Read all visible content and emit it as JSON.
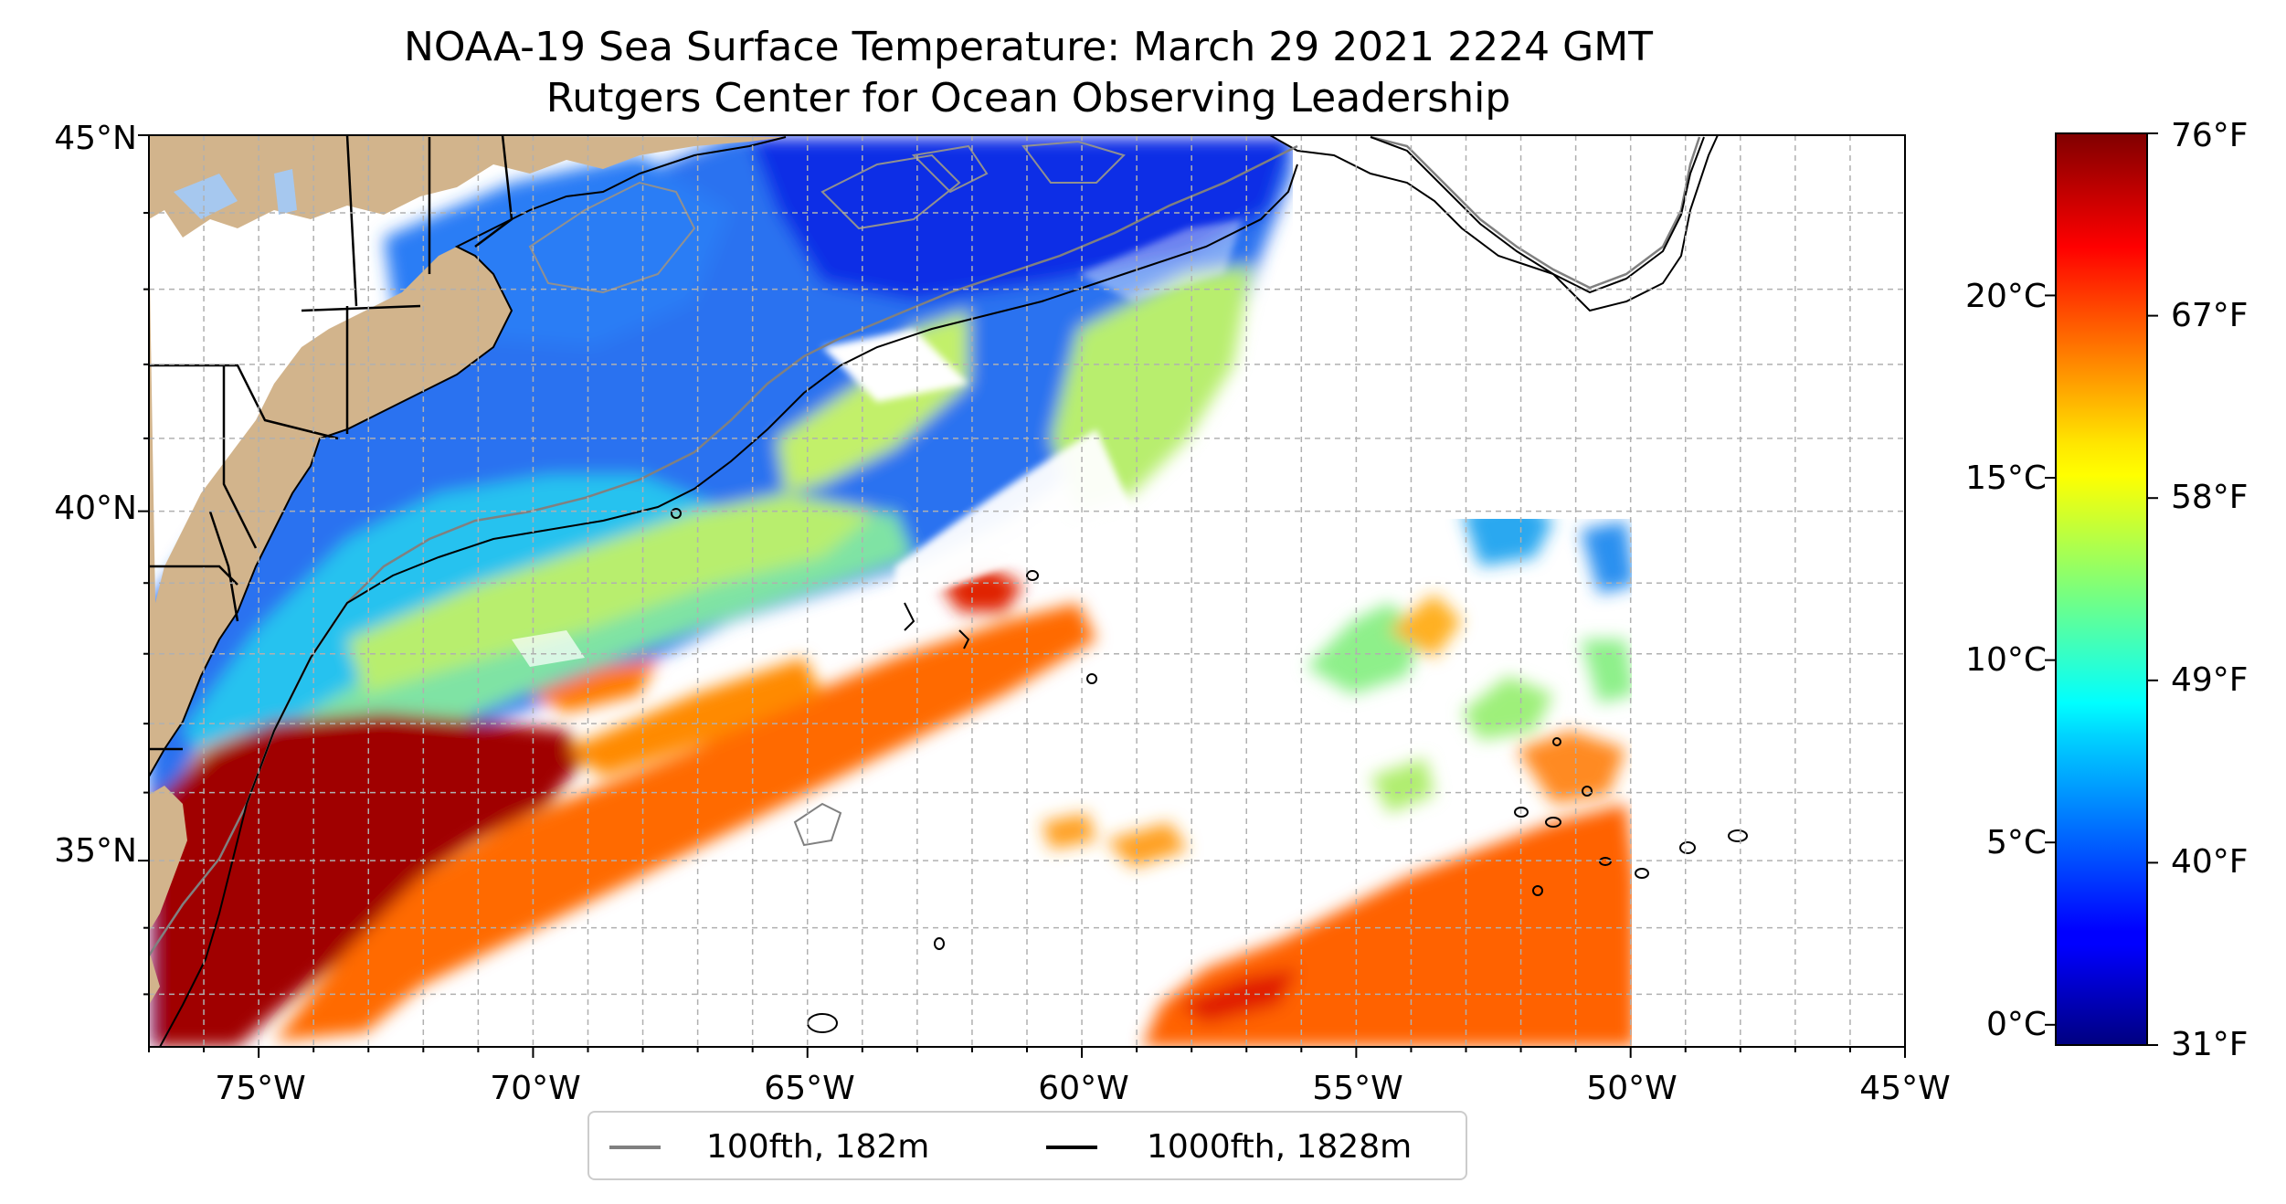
{
  "title": {
    "line1": "NOAA-19 Sea Surface Temperature: March 29 2021 2224 GMT",
    "line2": "Rutgers Center for Ocean Observing Leadership"
  },
  "map": {
    "lon_range": [
      -77,
      -45
    ],
    "lat_range": [
      32.2,
      45
    ],
    "lat_ticks": [
      {
        "value": 45,
        "label": "45°N"
      },
      {
        "value": 40,
        "label": "40°N"
      },
      {
        "value": 35,
        "label": "35°N"
      }
    ],
    "lon_ticks": [
      {
        "value": -75,
        "label": "75°W"
      },
      {
        "value": -70,
        "label": "70°W"
      },
      {
        "value": -65,
        "label": "65°W"
      },
      {
        "value": -60,
        "label": "60°W"
      },
      {
        "value": -55,
        "label": "55°W"
      },
      {
        "value": -50,
        "label": "50°W"
      },
      {
        "value": -45,
        "label": "45°W"
      }
    ],
    "gridlines": "dashed, 1° interval",
    "land_color": "#D2B48C",
    "missing_data_color": "#FFFFFF"
  },
  "colorbar": {
    "colormap": "jet",
    "range_f": [
      31,
      76
    ],
    "celsius_ticks": [
      "0°C",
      "5°C",
      "10°C",
      "15°C",
      "20°C"
    ],
    "fahrenheit_ticks": [
      "31°F",
      "40°F",
      "49°F",
      "58°F",
      "67°F",
      "76°F"
    ]
  },
  "legend": {
    "items": [
      {
        "label": "100fth, 182m",
        "color": "#808080"
      },
      {
        "label": "1000fth, 1828m",
        "color": "#000000"
      }
    ]
  }
}
